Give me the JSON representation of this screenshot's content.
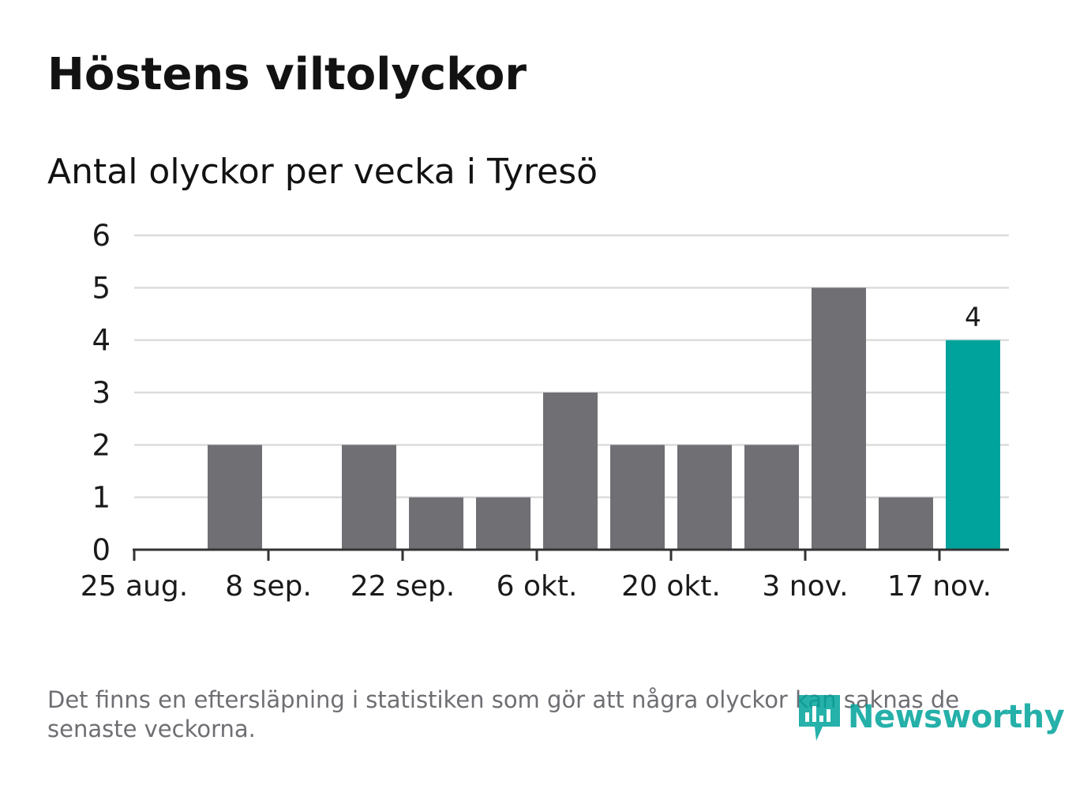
{
  "title": "Höstens viltolyckor",
  "subtitle": "Antal olyckor per vecka i Tyresö",
  "footnote": "Det finns en eftersläpning i statistiken som gör att några olyckor kan saknas de senaste veckorna.",
  "logo": {
    "text": "Newsworthy",
    "icon": "newsworthy-chart-bubble-icon",
    "color": "#00a39b"
  },
  "chart_data": {
    "type": "bar",
    "title": "Höstens viltolyckor",
    "subtitle": "Antal olyckor per vecka i Tyresö",
    "xlabel": "",
    "ylabel": "",
    "ylim": [
      0,
      6
    ],
    "yticks": [
      "0",
      "1",
      "2",
      "3",
      "4",
      "5",
      "6"
    ],
    "xticks": [
      "25 aug.",
      "8 sep.",
      "22 sep.",
      "6 okt.",
      "20 okt.",
      "3 nov.",
      "17 nov."
    ],
    "grid": true,
    "legend": "none",
    "bar_color": "#706f74",
    "highlight_color": "#00a39b",
    "series": [
      {
        "values": [
          0,
          2,
          0,
          2,
          1,
          1,
          3,
          2,
          2,
          2,
          5,
          1,
          4
        ]
      }
    ],
    "highlight_index": 12,
    "data_labels": [
      {
        "index": 12,
        "text": "4"
      }
    ]
  }
}
